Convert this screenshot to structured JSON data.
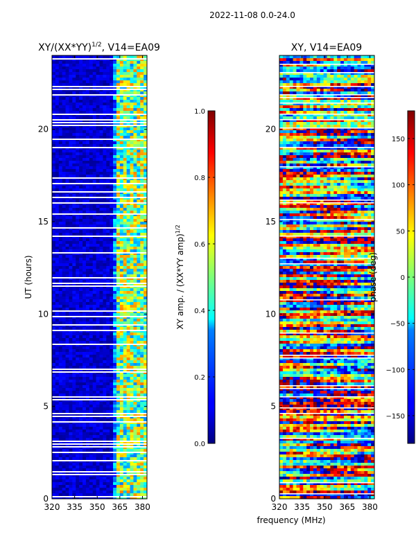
{
  "figure_title": "2022-11-08 0.0-24.0",
  "chart_data": [
    {
      "type": "heatmap",
      "title_main": "XY/(XX*YY)",
      "title_sup": "1/2",
      "title_rest": ", V14=EA09",
      "xlabel": "",
      "ylabel": "UT (hours)",
      "xlim": [
        320,
        383
      ],
      "ylim": [
        0,
        24
      ],
      "xticks": [
        320,
        335,
        350,
        365,
        380
      ],
      "yticks": [
        0,
        5,
        10,
        15,
        20
      ],
      "colorbar": {
        "label_main": "XY amp. / (XX*YY amp)",
        "label_sup": "1/2",
        "range": [
          0.0,
          1.0
        ],
        "ticks": [
          "0.0",
          "0.2",
          "0.4",
          "0.6",
          "0.8",
          "1.0"
        ],
        "colormap": "jet"
      }
    },
    {
      "type": "heatmap",
      "title": "XY, V14=EA09",
      "xlabel": "frequency (MHz)",
      "ylabel": "",
      "xlim": [
        320,
        383
      ],
      "ylim": [
        0,
        24
      ],
      "xticks": [
        320,
        335,
        350,
        365,
        380
      ],
      "yticks": [
        0,
        5,
        10,
        15,
        20
      ],
      "colorbar": {
        "label": "phase (deg)",
        "range": [
          -180,
          180
        ],
        "ticks": [
          "−150",
          "−100",
          "−50",
          "0",
          "50",
          "100",
          "150"
        ],
        "colormap": "jet"
      }
    }
  ]
}
